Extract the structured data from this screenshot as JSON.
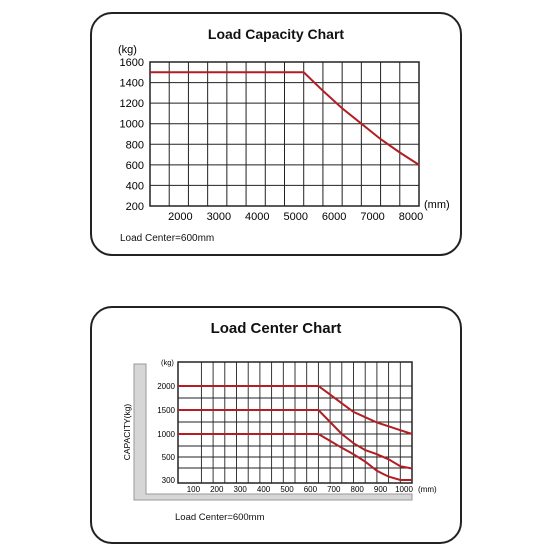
{
  "colors": {
    "curve": "#b11e24",
    "grid": "#222222",
    "frame": "#222222",
    "wall": "#d6d6d6"
  },
  "chart_data": [
    {
      "type": "line",
      "title": "Load Capacity Chart",
      "ylabel": "(kg)",
      "xlabel": "(mm)",
      "note": "Load Center=600mm",
      "grid": true,
      "xlim": [
        1000,
        8000
      ],
      "ylim": [
        200,
        1600
      ],
      "xticks": [
        "2000",
        "3000",
        "4000",
        "5000",
        "6000",
        "7000",
        "8000"
      ],
      "yticks": [
        "200",
        "400",
        "600",
        "800",
        "1000",
        "1200",
        "1400",
        "1600"
      ],
      "series": [
        {
          "x": [
            1000,
            2000,
            3000,
            4000,
            5000,
            5500,
            6000,
            6500,
            7000,
            7500,
            8000
          ],
          "y": [
            1500,
            1500,
            1500,
            1500,
            1500,
            1320,
            1150,
            1000,
            850,
            720,
            600
          ]
        }
      ]
    },
    {
      "type": "line",
      "title": "Load Center Chart",
      "ylabel": "CAPACITY(kg)",
      "yunit": "(kg)",
      "xlabel": "(mm)",
      "note": "Load Center=600mm",
      "grid": true,
      "xlim": [
        0,
        1000
      ],
      "xticks": [
        "100",
        "200",
        "300",
        "400",
        "500",
        "600",
        "700",
        "800",
        "900",
        "1000"
      ],
      "yticks": [
        "300",
        "500",
        "1000",
        "1500",
        "2000"
      ],
      "series": [
        {
          "x": [
            0,
            100,
            200,
            300,
            400,
            500,
            600,
            650,
            700,
            750,
            800,
            850,
            900,
            950,
            1000
          ],
          "y": [
            2000,
            2000,
            2000,
            2000,
            2000,
            2000,
            2000,
            1820,
            1640,
            1460,
            1350,
            1240,
            1160,
            1080,
            1000
          ]
        },
        {
          "x": [
            0,
            100,
            200,
            300,
            400,
            500,
            600,
            650,
            700,
            750,
            800,
            850,
            900,
            950,
            1000
          ],
          "y": [
            1500,
            1500,
            1500,
            1500,
            1500,
            1500,
            1500,
            1250,
            1000,
            800,
            650,
            560,
            480,
            420,
            400
          ]
        },
        {
          "x": [
            0,
            100,
            200,
            300,
            400,
            500,
            600,
            650,
            700,
            750,
            800,
            850,
            900,
            950,
            1000
          ],
          "y": [
            1000,
            1000,
            1000,
            1000,
            1000,
            1000,
            1000,
            850,
            700,
            560,
            460,
            380,
            330,
            300,
            300
          ]
        }
      ]
    }
  ]
}
